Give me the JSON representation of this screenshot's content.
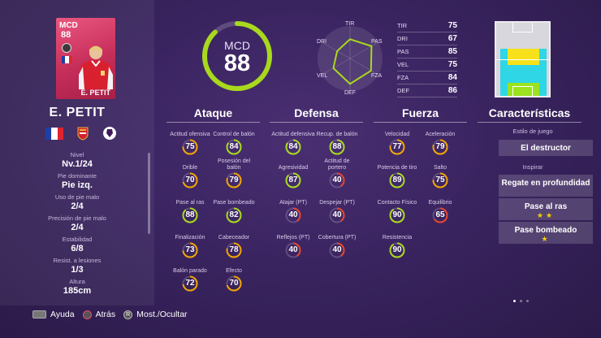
{
  "player": {
    "card_position": "MCD",
    "card_rating": "88",
    "name_card": "E. PETIT",
    "name": "E. PETIT",
    "club_icon": "arsenal-crest-icon",
    "league_icon": "premier-league-icon",
    "nationality_flag": "france-flag-icon"
  },
  "info": [
    {
      "label": "Nivel",
      "value": "Nv.1/24"
    },
    {
      "label": "Pie dominante",
      "value": "Pie izq."
    },
    {
      "label": "Uso de pie malo",
      "value": "2/4"
    },
    {
      "label": "Precisión de pie malo",
      "value": "2/4"
    },
    {
      "label": "Estabilidad",
      "value": "6/8"
    },
    {
      "label": "Resist. a lesiones",
      "value": "1/3"
    },
    {
      "label": "Altura",
      "value": "185cm"
    }
  ],
  "gauge": {
    "position": "MCD",
    "rating": "88",
    "fill": 0.88,
    "color": "#a8d91c"
  },
  "radar": {
    "labels": [
      "TIR",
      "PAS",
      "FZA",
      "DEF",
      "VEL",
      "DRI"
    ],
    "values": [
      75,
      85,
      84,
      86,
      75,
      67
    ]
  },
  "stats": [
    {
      "label": "TIR",
      "value": "75"
    },
    {
      "label": "DRI",
      "value": "67"
    },
    {
      "label": "PAS",
      "value": "85"
    },
    {
      "label": "VEL",
      "value": "75"
    },
    {
      "label": "FZA",
      "value": "84"
    },
    {
      "label": "DEF",
      "value": "86"
    }
  ],
  "columns": {
    "ataque": {
      "title": "Ataque"
    },
    "defensa": {
      "title": "Defensa"
    },
    "fuerza": {
      "title": "Fuerza"
    },
    "caracteristicas": {
      "title": "Características"
    }
  },
  "attributes": {
    "ataque": [
      {
        "label": "Actitud ofensiva",
        "value": 75
      },
      {
        "label": "Control de balón",
        "value": 84
      },
      {
        "label": "Drible",
        "value": 70
      },
      {
        "label": "Posesión del balón",
        "value": 79
      },
      {
        "label": "Pase al ras",
        "value": 88
      },
      {
        "label": "Pase bombeado",
        "value": 82
      },
      {
        "label": "Finalización",
        "value": 73
      },
      {
        "label": "Cabeceador",
        "value": 78
      },
      {
        "label": "Balón parado",
        "value": 72
      },
      {
        "label": "Efecto",
        "value": 70
      }
    ],
    "defensa": [
      {
        "label": "Actitud defensiva",
        "value": 84
      },
      {
        "label": "Recup. de balón",
        "value": 88
      },
      {
        "label": "Agresividad",
        "value": 87
      },
      {
        "label": "Actitud de portero",
        "value": 40
      },
      {
        "label": "Atajar (PT)",
        "value": 40
      },
      {
        "label": "Despejar (PT)",
        "value": 40
      },
      {
        "label": "Reflejos (PT)",
        "value": 40
      },
      {
        "label": "Cobertura (PT)",
        "value": 40
      }
    ],
    "fuerza": [
      {
        "label": "Velocidad",
        "value": 77
      },
      {
        "label": "Aceleración",
        "value": 79
      },
      {
        "label": "Potencia de tiro",
        "value": 89
      },
      {
        "label": "Salto",
        "value": 75
      },
      {
        "label": "Contacto Físico",
        "value": 90
      },
      {
        "label": "Equilibrio",
        "value": 65
      },
      {
        "label": "Resistencia",
        "value": 90
      }
    ]
  },
  "caracteristicas": {
    "estilo_label": "Estilo de juego",
    "estilo_value": "El destructor",
    "inspirar_label": "Inspirar",
    "inspirar": [
      {
        "name": "Regate en profundidad",
        "stars": 0
      },
      {
        "name": "Pase al ras",
        "stars": 2
      },
      {
        "name": "Pase bombeado",
        "stars": 1
      }
    ]
  },
  "colors": {
    "high": "#a8d91c",
    "mid": "#f0a500",
    "low": "#e8452b",
    "accent_card": "#c62e5a"
  },
  "footer": {
    "ayuda": "Ayuda",
    "atras": "Atrás",
    "mostrar": "Most./Ocultar",
    "r_key": "R"
  }
}
